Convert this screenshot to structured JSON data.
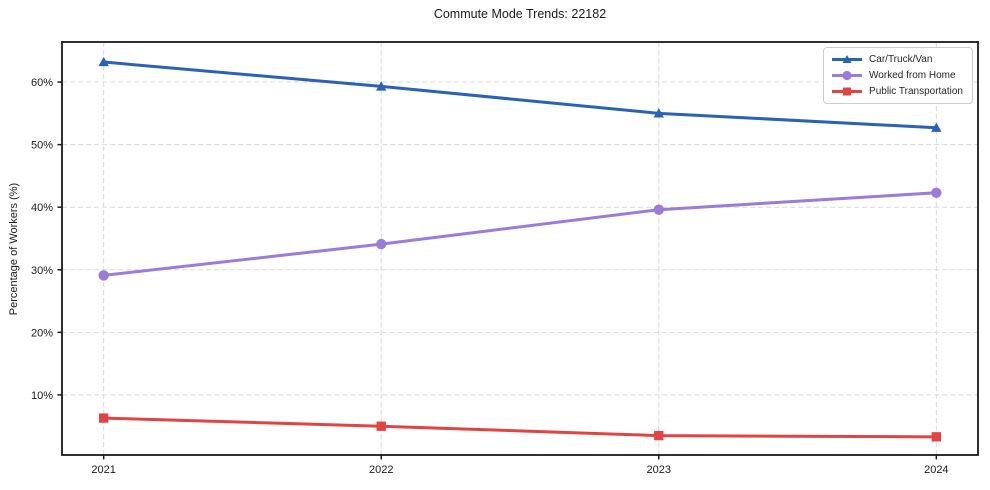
{
  "figure": {
    "background_color": "#ffffff",
    "frame_color": "#1a1a1a",
    "grid_color": "#d9d9d9",
    "text_color": "#1a1a1a"
  },
  "chart_data": {
    "type": "line",
    "title": "Commute Mode Trends: 22182",
    "xlabel": "",
    "ylabel": "Percentage of Workers (%)",
    "x_tick_labels": [
      "2021",
      "2022",
      "2023",
      "2024"
    ],
    "y_ticks": [
      10,
      20,
      30,
      40,
      50,
      60
    ],
    "y_tick_labels": [
      "10%",
      "20%",
      "30%",
      "40%",
      "50%",
      "60%"
    ],
    "ylim": [
      0.4,
      66.4
    ],
    "grid": "dashed, both axes",
    "legend_position": "upper right",
    "series": [
      {
        "name": "Car/Truck/Van",
        "color": "#2a62b8",
        "marker": "triangle",
        "values": [
          63.2,
          59.3,
          55.0,
          52.7
        ]
      },
      {
        "name": "Worked from Home",
        "color": "#9b7bdb",
        "marker": "circle",
        "values": [
          29.1,
          34.1,
          39.6,
          42.3
        ]
      },
      {
        "name": "Public Transportation",
        "color": "#e24444",
        "marker": "square",
        "values": [
          6.3,
          5.0,
          3.5,
          3.3
        ]
      }
    ]
  }
}
